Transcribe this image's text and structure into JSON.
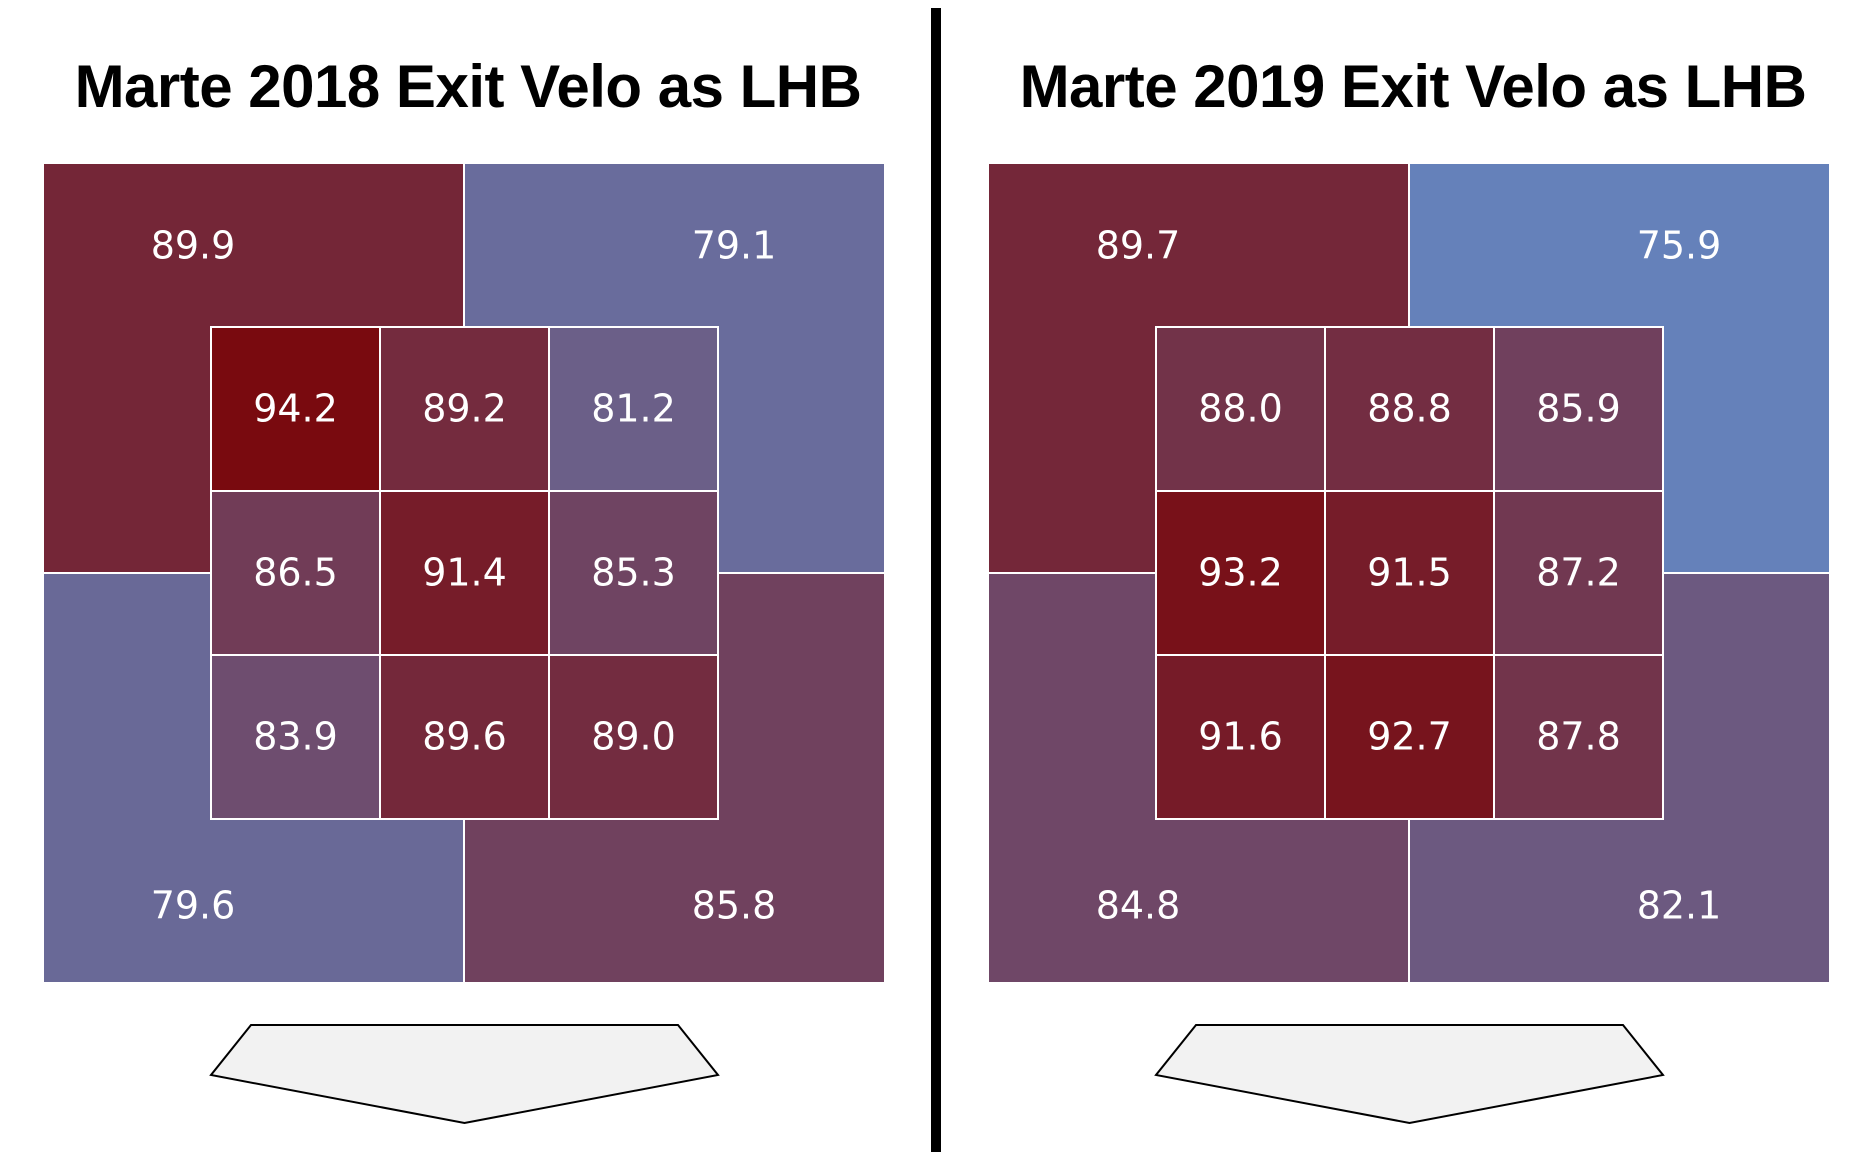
{
  "chart_data": [
    {
      "type": "heatmap",
      "title": "Marte 2018 Exit Velo as LHB",
      "inner_zone": [
        [
          94.2,
          89.2,
          81.2
        ],
        [
          86.5,
          91.4,
          85.3
        ],
        [
          83.9,
          89.6,
          89.0
        ]
      ],
      "outer_zone": {
        "top_left": 89.9,
        "top_right": 79.1,
        "bottom_left": 79.6,
        "bottom_right": 85.8
      },
      "color_scale": {
        "low": "#6487c2",
        "high": "#7a0508"
      }
    },
    {
      "type": "heatmap",
      "title": "Marte 2019 Exit Velo as LHB",
      "inner_zone": [
        [
          88.0,
          88.8,
          85.9
        ],
        [
          93.2,
          91.5,
          87.2
        ],
        [
          91.6,
          92.7,
          87.8
        ]
      ],
      "outer_zone": {
        "top_left": 89.7,
        "top_right": 75.9,
        "bottom_left": 84.8,
        "bottom_right": 82.1
      },
      "color_scale": {
        "low": "#6487c2",
        "high": "#7a0508"
      }
    }
  ]
}
